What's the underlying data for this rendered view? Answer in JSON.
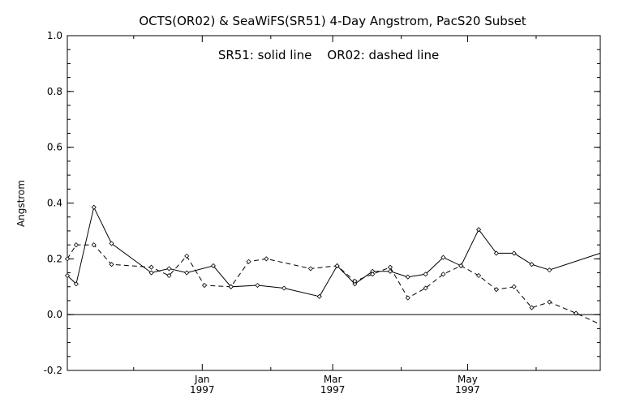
{
  "chart_data": {
    "type": "line",
    "title": "OCTS(OR02) & SeaWiFS(SR51) 4-Day Angstrom, PacS20 Subset",
    "annotation": "SR51: solid line    OR02: dashed line",
    "ylabel": "Angstrom",
    "xlabel": "",
    "ylim": [
      -0.2,
      1.0
    ],
    "xlim": [
      "1996-11-01",
      "1997-06-30"
    ],
    "yticks": [
      "-0.2",
      "0.0",
      "0.2",
      "0.4",
      "0.6",
      "0.8",
      "1.0"
    ],
    "ytick_values": [
      -0.2,
      0.0,
      0.2,
      0.4,
      0.6,
      0.8,
      1.0
    ],
    "xticks": [
      {
        "date": "1997-01-01",
        "month": "Jan",
        "year": "1997"
      },
      {
        "date": "1997-03-01",
        "month": "Mar",
        "year": "1997"
      },
      {
        "date": "1997-05-01",
        "month": "May",
        "year": "1997"
      }
    ],
    "zero_line": true,
    "series": [
      {
        "style": "solid",
        "marker": "diamond",
        "x": [
          "1996-11-01",
          "1996-11-05",
          "1996-11-13",
          "1996-11-21",
          "1996-12-09",
          "1996-12-17",
          "1996-12-25",
          "1997-01-06",
          "1997-01-14",
          "1997-01-26",
          "1997-02-07",
          "1997-02-23",
          "1997-03-03",
          "1997-03-11",
          "1997-03-19",
          "1997-03-27",
          "1997-04-04",
          "1997-04-12",
          "1997-04-20",
          "1997-04-28",
          "1997-05-06",
          "1997-05-14",
          "1997-05-22",
          "1997-05-30",
          "1997-06-07",
          "1997-06-30"
        ],
        "values": [
          0.14,
          0.11,
          0.385,
          0.255,
          0.15,
          0.165,
          0.15,
          0.175,
          0.1,
          0.105,
          0.095,
          0.065,
          0.175,
          0.11,
          0.155,
          0.155,
          0.135,
          0.145,
          0.205,
          0.175,
          0.305,
          0.22,
          0.22,
          0.18,
          0.16,
          0.22
        ]
      },
      {
        "style": "dashed",
        "marker": "diamond",
        "x": [
          "1996-11-01",
          "1996-11-05",
          "1996-11-13",
          "1996-11-21",
          "1996-12-09",
          "1996-12-17",
          "1996-12-25",
          "1997-01-02",
          "1997-01-14",
          "1997-01-22",
          "1997-01-30",
          "1997-02-19",
          "1997-03-03",
          "1997-03-11",
          "1997-03-19",
          "1997-03-27",
          "1997-04-04",
          "1997-04-12",
          "1997-04-20",
          "1997-04-28",
          "1997-05-06",
          "1997-05-14",
          "1997-05-22",
          "1997-05-30",
          "1997-06-07",
          "1997-06-19",
          "1997-06-30"
        ],
        "values": [
          0.2,
          0.25,
          0.25,
          0.18,
          0.17,
          0.14,
          0.21,
          0.105,
          0.1,
          0.19,
          0.2,
          0.165,
          0.175,
          0.12,
          0.145,
          0.17,
          0.06,
          0.095,
          0.145,
          0.175,
          0.14,
          0.09,
          0.1,
          0.025,
          0.045,
          0.005,
          -0.035
        ]
      }
    ]
  }
}
